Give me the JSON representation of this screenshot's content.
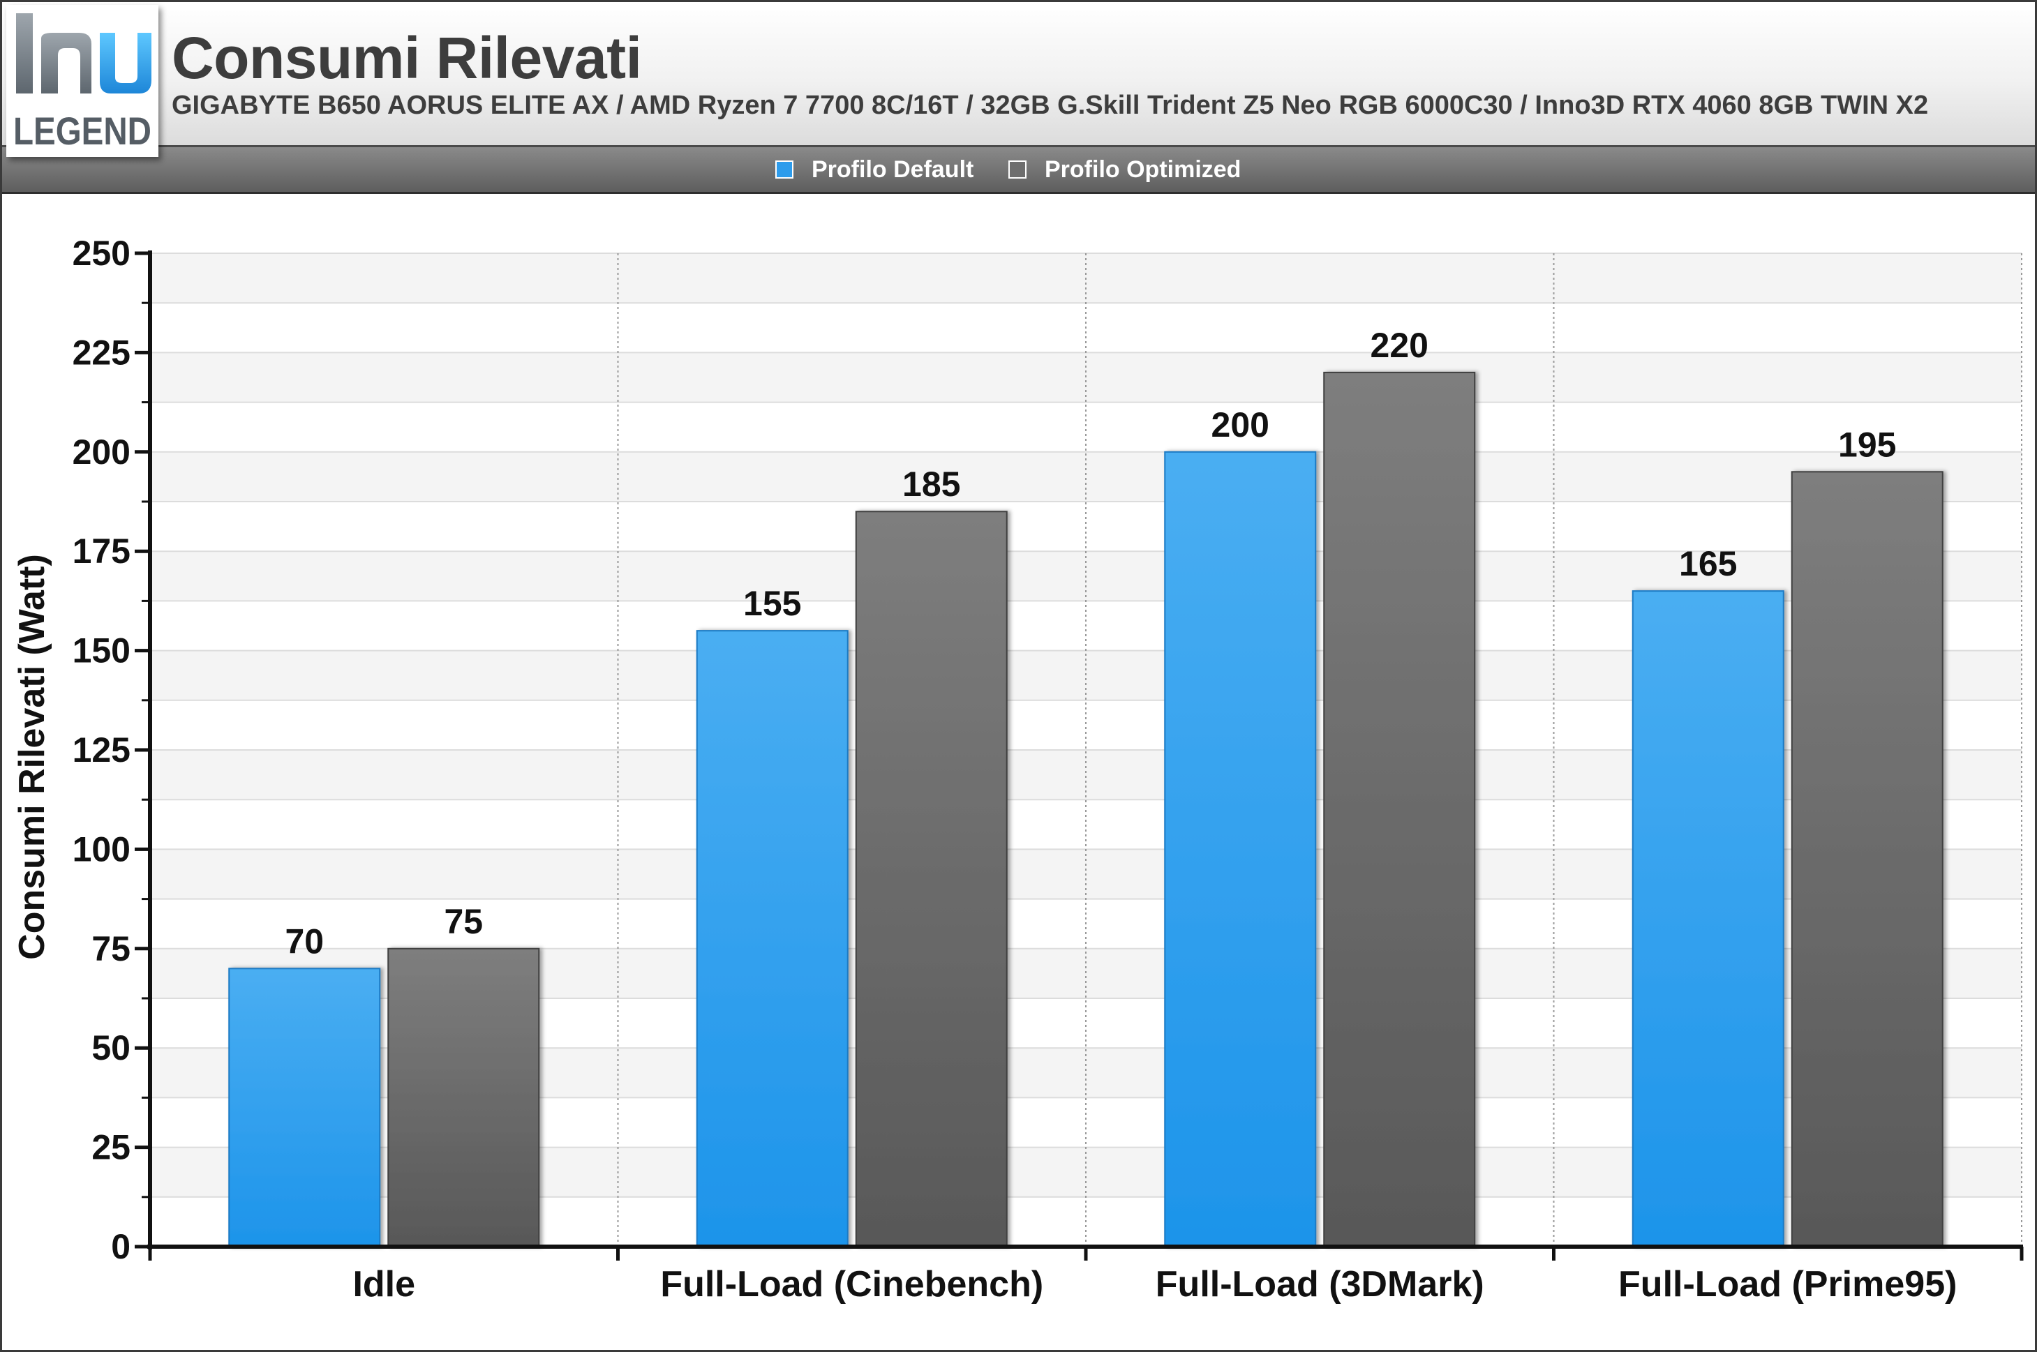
{
  "header": {
    "title": "Consumi Rilevati",
    "subtitle": "GIGABYTE B650 AORUS ELITE AX / AMD Ryzen 7 7700 8C/16T / 32GB G.Skill Trident Z5 Neo RGB 6000C30 / Inno3D RTX 4060 8GB TWIN X2"
  },
  "logo": {
    "text": "LEGEND"
  },
  "colors": {
    "series_default": "#2d9cec",
    "series_optimized": "#6e6e6e",
    "text": "#111111"
  },
  "chart_data": {
    "type": "bar",
    "title": "Consumi Rilevati",
    "xlabel": "",
    "ylabel": "Consumi Rilevati (Watt)",
    "categories": [
      "Idle",
      "Full-Load (Cinebench)",
      "Full-Load (3DMark)",
      "Full-Load (Prime95)"
    ],
    "series": [
      {
        "name": "Profilo Default",
        "values": [
          70,
          155,
          200,
          165
        ]
      },
      {
        "name": "Profilo Optimized",
        "values": [
          75,
          185,
          220,
          195
        ]
      }
    ],
    "ylim": [
      0,
      250
    ],
    "yticks": [
      0,
      25,
      50,
      75,
      100,
      125,
      150,
      175,
      200,
      225,
      250
    ],
    "grid": true,
    "legend_position": "top"
  }
}
